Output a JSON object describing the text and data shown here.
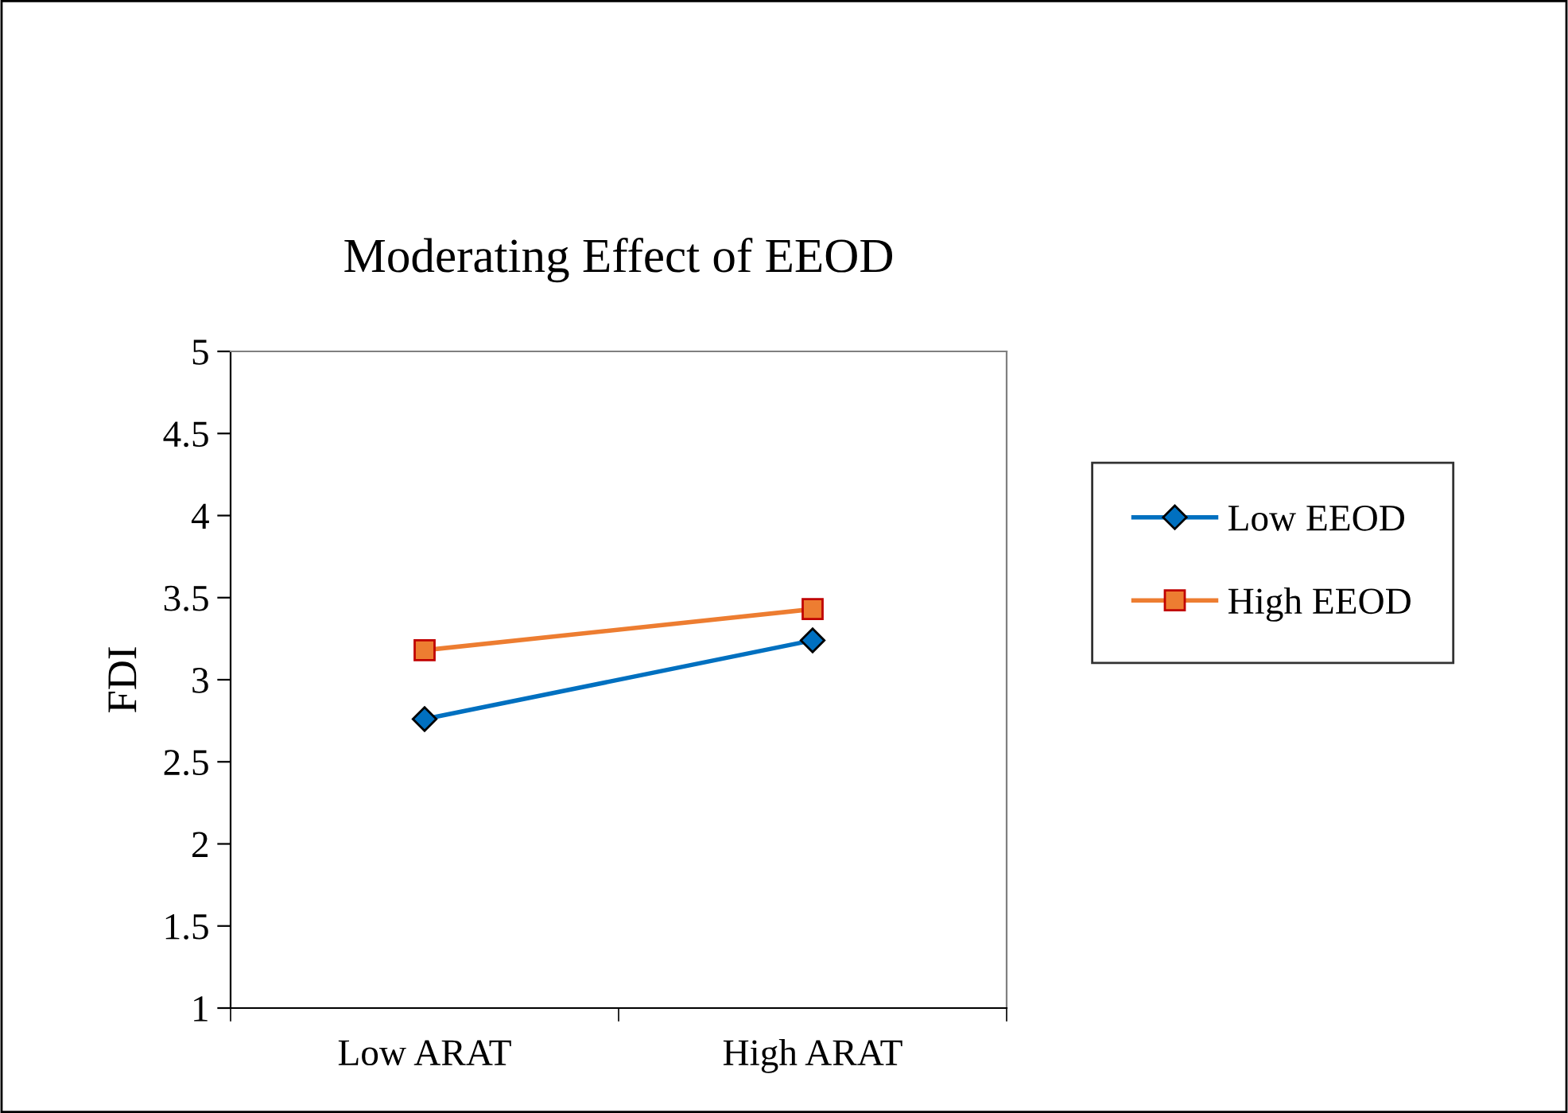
{
  "chart_data": {
    "type": "line",
    "title": "Moderating Effect of EEOD",
    "ylabel": "FDI",
    "categories": [
      "Low ARAT",
      "High ARAT"
    ],
    "series": [
      {
        "name": "Low EEOD",
        "color": "#0070c0",
        "marker": "diamond",
        "values": [
          2.76,
          3.24
        ]
      },
      {
        "name": "High EEOD",
        "color": "#ed7d31",
        "marker": "square",
        "values": [
          3.18,
          3.43
        ]
      }
    ],
    "ylim": [
      1,
      5
    ],
    "yticks": [
      1,
      1.5,
      2,
      2.5,
      3,
      3.5,
      4,
      4.5,
      5
    ],
    "grid": false,
    "legend": "right",
    "line_style": "solid"
  }
}
